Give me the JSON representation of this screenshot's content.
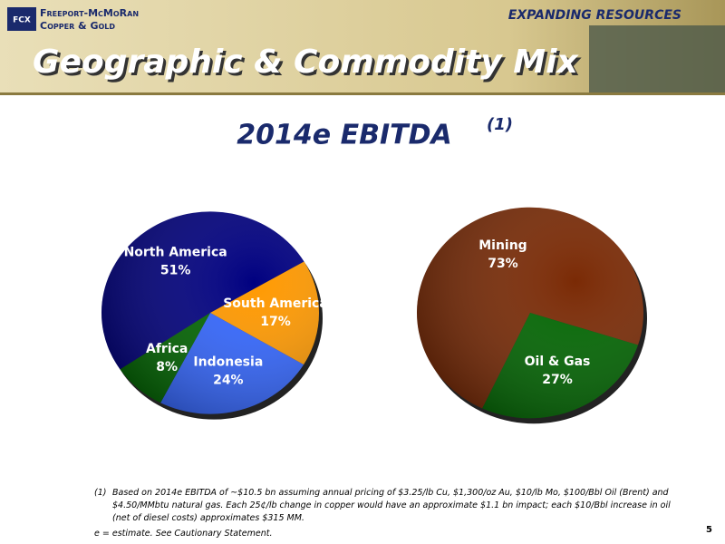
{
  "header": {
    "logo_mark": "FCX",
    "logo_line1": "Freeport-McMoRan",
    "logo_line2": "Copper & Gold",
    "tagline": "EXPANDING RESOURCES",
    "title": "Geographic & Commodity Mix"
  },
  "subtitle": "2014e EBITDA",
  "subtitle_note": "(1)",
  "chart_data": [
    {
      "type": "pie",
      "categories": [
        "North America",
        "South America",
        "Indonesia",
        "Africa"
      ],
      "values": [
        51,
        17,
        24,
        8
      ],
      "value_labels": [
        "51%",
        "17%",
        "24%",
        "8%"
      ],
      "colors": [
        "#000080",
        "#ff9900",
        "#3366ff",
        "#006600"
      ]
    },
    {
      "type": "pie",
      "categories": [
        "Mining",
        "Oil & Gas"
      ],
      "values": [
        73,
        27
      ],
      "value_labels": [
        "73%",
        "27%"
      ],
      "colors": [
        "#7a2a05",
        "#006600"
      ]
    }
  ],
  "footnotes": {
    "note_1_marker": "(1)",
    "note_1": [
      "Based on 2014e EBITDA of ~$10.5 bn assuming annual pricing of $3.25/lb Cu, $1,300/oz Au, $10/lb Mo, $100/Bbl Oil (Brent) and",
      "$4.50/MMbtu natural gas. Each 25¢/lb change in copper would have an approximate $1.1 bn impact; each $10/Bbl increase in oil",
      "(net of diesel costs) approximates $315 MM."
    ],
    "note_2": "e = estimate. See Cautionary Statement."
  },
  "page_number": "5"
}
